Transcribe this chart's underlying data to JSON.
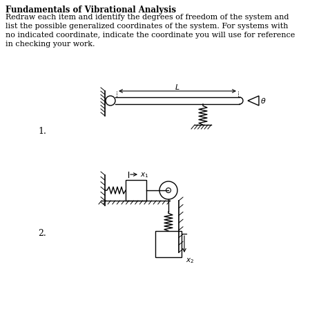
{
  "title": "Fundamentals of Vibrational Analysis",
  "body_lines": [
    "Redraw each item and identify the degrees of freedom of the system and",
    "list the possible generalized coordinates of the system. For systems with",
    "no indicated coordinate, indicate the coordinate you will use for reference",
    "in checking your work."
  ],
  "bg_color": "#ffffff",
  "text_color": "#000000",
  "diagram1_label": "1.",
  "diagram2_label": "2.",
  "fig_width": 4.65,
  "fig_height": 4.52,
  "dpi": 100
}
